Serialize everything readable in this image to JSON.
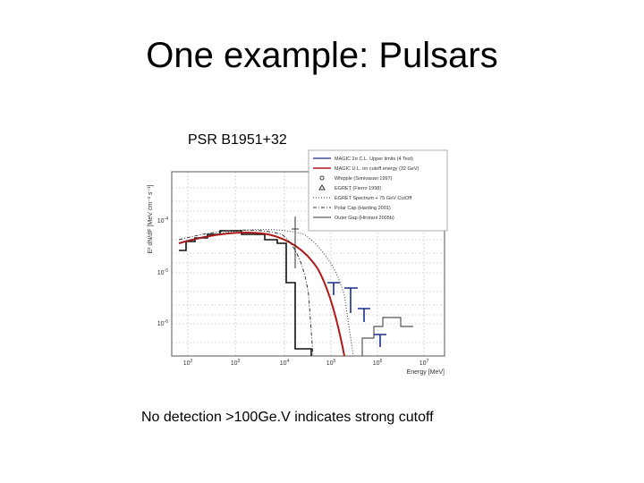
{
  "header": {
    "title": "One example: Pulsars"
  },
  "figure": {
    "caption": "PSR B1951+32",
    "y_label": "E² dN/dF [MeV cm⁻² s⁻¹]",
    "x_label": "Energy [MeV]",
    "x_ticks": [
      {
        "base": "10",
        "exp": "2"
      },
      {
        "base": "10",
        "exp": "3"
      },
      {
        "base": "10",
        "exp": "4"
      },
      {
        "base": "10",
        "exp": "5"
      },
      {
        "base": "10",
        "exp": "6"
      },
      {
        "base": "10",
        "exp": "7"
      }
    ],
    "y_ticks": [
      {
        "base": "10",
        "exp": "-4"
      },
      {
        "base": "10",
        "exp": "-5"
      },
      {
        "base": "10",
        "exp": "-6"
      }
    ],
    "legend": [
      "MAGIC 2σ C.L. Upper limits (4 Test)",
      "MAGIC U.L. on cutoff energy (32 GeV)",
      "Whipple (Srinivasan 1997)",
      "EGRET (Fierro 1998)",
      "EGRET Spectrum + 75 GeV CutOff",
      "Polar Cap (Harding 2001)",
      "Outer Gap (Hirotani 2005b)"
    ]
  },
  "body": {
    "text": "No detection >100Ge.V indicates strong cutoff"
  }
}
